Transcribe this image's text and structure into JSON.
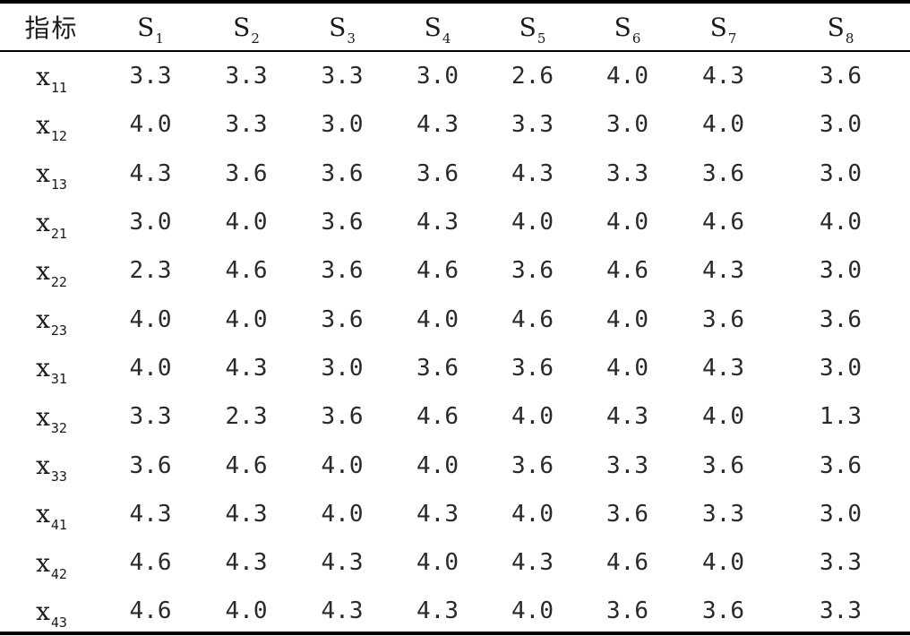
{
  "table": {
    "header": {
      "indicator": "指标",
      "columns": [
        {
          "base": "S",
          "sub": "1"
        },
        {
          "base": "S",
          "sub": "2"
        },
        {
          "base": "S",
          "sub": "3"
        },
        {
          "base": "S",
          "sub": "4"
        },
        {
          "base": "S",
          "sub": "5"
        },
        {
          "base": "S",
          "sub": "6"
        },
        {
          "base": "S",
          "sub": "7"
        },
        {
          "base": "S",
          "sub": "8"
        }
      ]
    },
    "rows": [
      {
        "base": "x",
        "sub": "11",
        "values": [
          "3.3",
          "3.3",
          "3.3",
          "3.0",
          "2.6",
          "4.0",
          "4.3",
          "3.6"
        ]
      },
      {
        "base": "x",
        "sub": "12",
        "values": [
          "4.0",
          "3.3",
          "3.0",
          "4.3",
          "3.3",
          "3.0",
          "4.0",
          "3.0"
        ]
      },
      {
        "base": "x",
        "sub": "13",
        "values": [
          "4.3",
          "3.6",
          "3.6",
          "3.6",
          "4.3",
          "3.3",
          "3.6",
          "3.0"
        ]
      },
      {
        "base": "x",
        "sub": "21",
        "values": [
          "3.0",
          "4.0",
          "3.6",
          "4.3",
          "4.0",
          "4.0",
          "4.6",
          "4.0"
        ]
      },
      {
        "base": "x",
        "sub": "22",
        "values": [
          "2.3",
          "4.6",
          "3.6",
          "4.6",
          "3.6",
          "4.6",
          "4.3",
          "3.0"
        ]
      },
      {
        "base": "x",
        "sub": "23",
        "values": [
          "4.0",
          "4.0",
          "3.6",
          "4.0",
          "4.6",
          "4.0",
          "3.6",
          "3.6"
        ]
      },
      {
        "base": "x",
        "sub": "31",
        "values": [
          "4.0",
          "4.3",
          "3.0",
          "3.6",
          "3.6",
          "4.0",
          "4.3",
          "3.0"
        ]
      },
      {
        "base": "x",
        "sub": "32",
        "values": [
          "3.3",
          "2.3",
          "3.6",
          "4.6",
          "4.0",
          "4.3",
          "4.0",
          "1.3"
        ]
      },
      {
        "base": "x",
        "sub": "33",
        "values": [
          "3.6",
          "4.6",
          "4.0",
          "4.0",
          "3.6",
          "3.3",
          "3.6",
          "3.6"
        ]
      },
      {
        "base": "x",
        "sub": "41",
        "values": [
          "4.3",
          "4.3",
          "4.0",
          "4.3",
          "4.0",
          "3.6",
          "3.3",
          "3.0"
        ]
      },
      {
        "base": "x",
        "sub": "42",
        "values": [
          "4.6",
          "4.3",
          "4.3",
          "4.0",
          "4.3",
          "4.6",
          "4.0",
          "3.3"
        ]
      },
      {
        "base": "x",
        "sub": "43",
        "values": [
          "4.6",
          "4.0",
          "4.3",
          "4.3",
          "4.0",
          "3.6",
          "3.6",
          "3.3"
        ]
      }
    ]
  }
}
